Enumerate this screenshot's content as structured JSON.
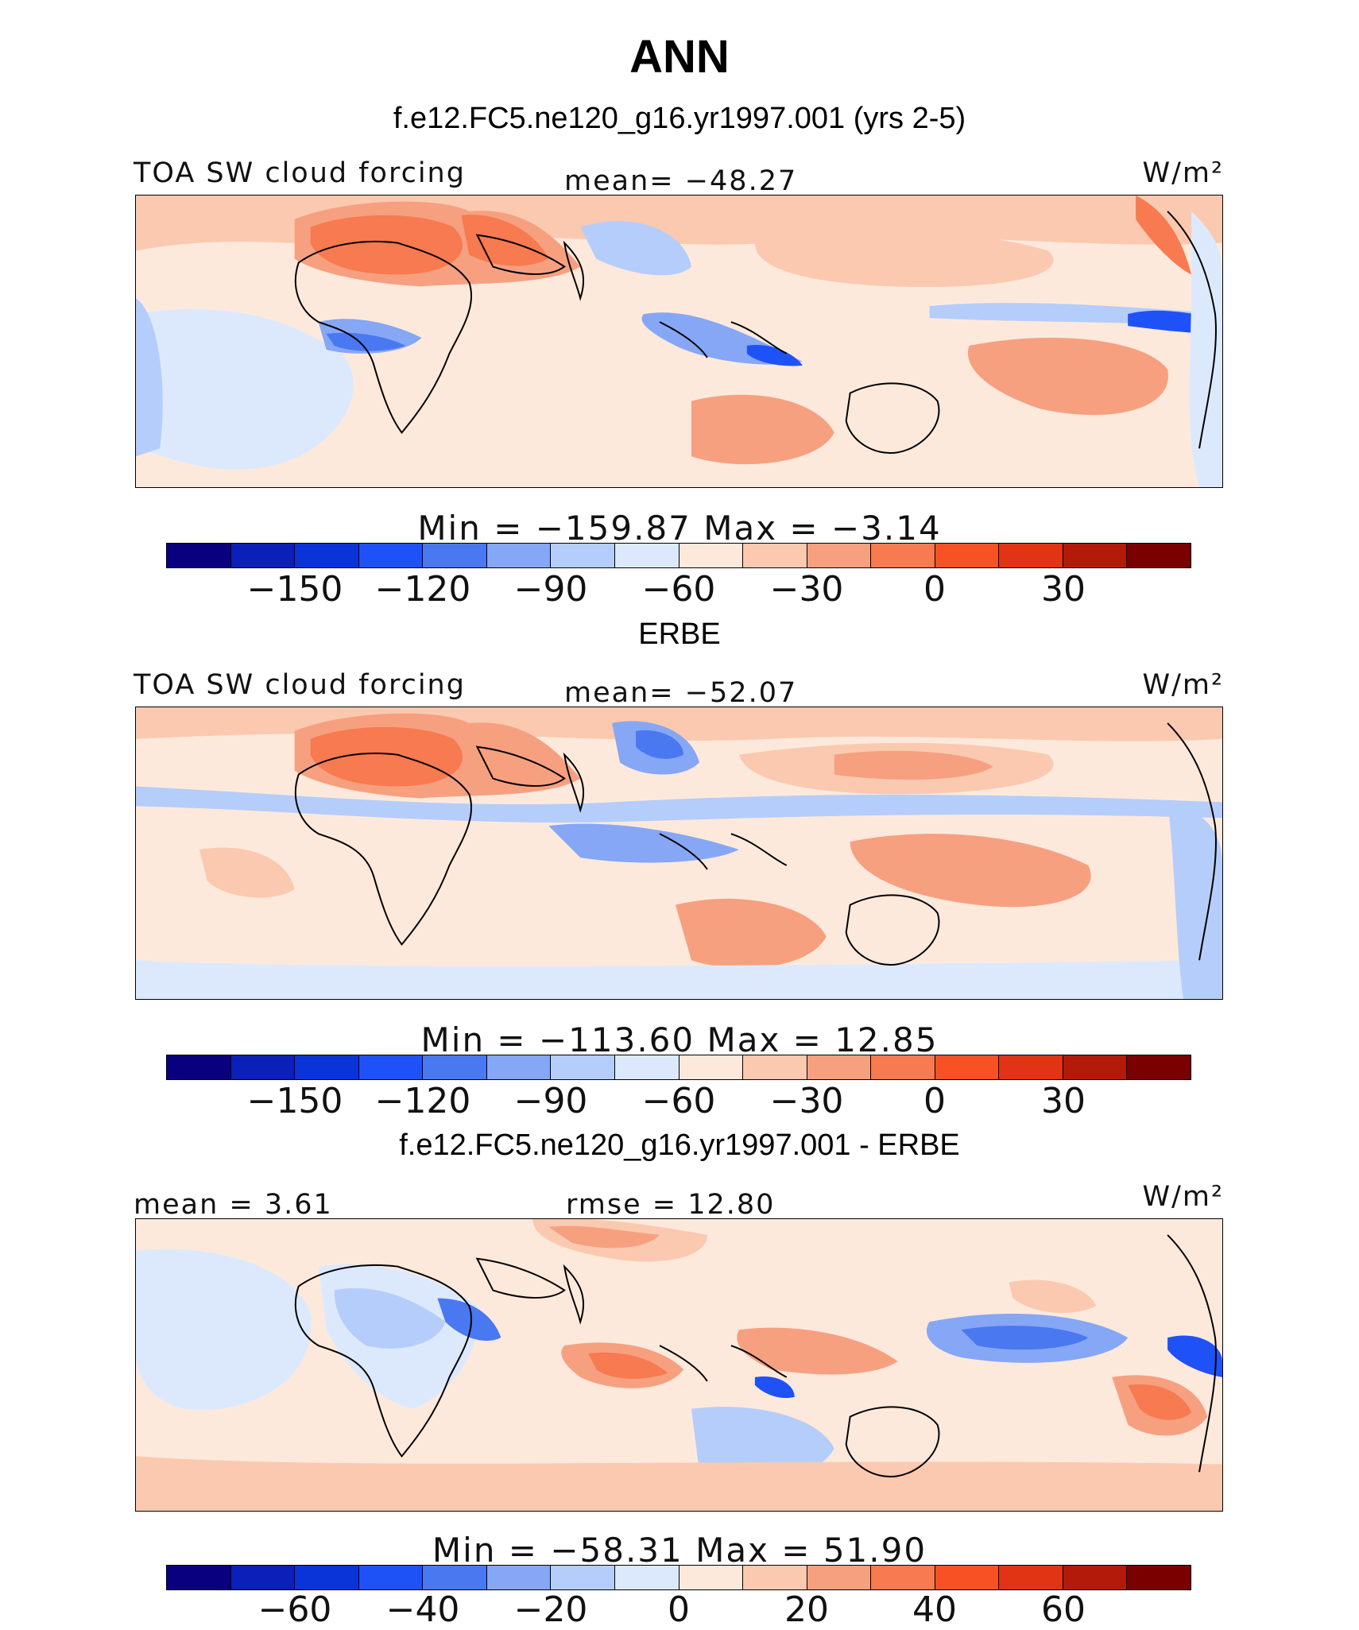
{
  "figure": {
    "title": "ANN",
    "units_label": "W/m²",
    "colors": [
      "#08007f",
      "#0a20b8",
      "#0b34d8",
      "#1f52f6",
      "#4a78f0",
      "#86a7f5",
      "#b5cdfa",
      "#dce9fd",
      "#fde9dc",
      "#fbc9b0",
      "#f6a080",
      "#f77a50",
      "#f85224",
      "#e13414",
      "#b41a0a",
      "#7a0000"
    ]
  },
  "panels": [
    {
      "title": "f.e12.FC5.ne120_g16.yr1997.001 (yrs 2-5)",
      "left_label": "TOA SW cloud forcing",
      "center_label": "mean= −48.27",
      "right_label": "W/m²",
      "minmax": "Min  =  −159.87  Max  =   −3.14",
      "ticks": [
        "−150",
        "−120",
        "−90",
        "−60",
        "−30",
        "0",
        "30"
      ]
    },
    {
      "title": "ERBE",
      "left_label": "TOA SW cloud forcing",
      "center_label": "mean= −52.07",
      "right_label": "W/m²",
      "minmax": "Min  =  −113.60  Max  =   12.85",
      "ticks": [
        "−150",
        "−120",
        "−90",
        "−60",
        "−30",
        "0",
        "30"
      ]
    },
    {
      "title": "f.e12.FC5.ne120_g16.yr1997.001 - ERBE",
      "left_label": "mean =    3.61",
      "center_label": "rmse  =   12.80",
      "right_label": "W/m²",
      "minmax": "Min  =  −58.31  Max  =   51.90",
      "ticks": [
        "−60",
        "−40",
        "−20",
        "0",
        "20",
        "40",
        "60"
      ]
    }
  ]
}
